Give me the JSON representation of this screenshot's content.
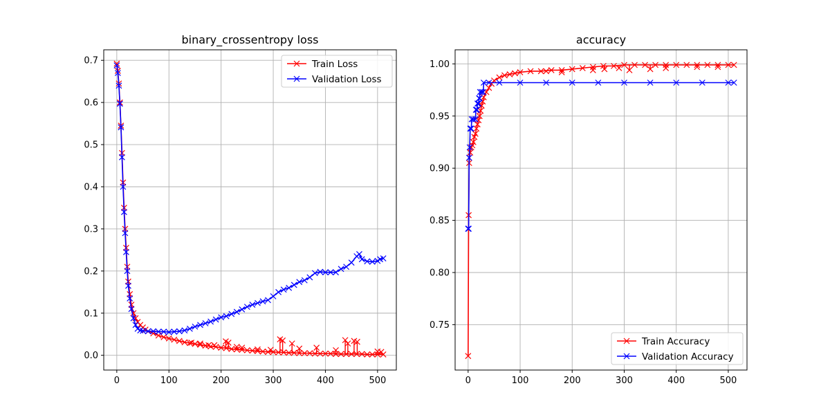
{
  "chart_data": [
    {
      "type": "line",
      "title": "binary_crossentropy loss",
      "xlabel": "",
      "ylabel": "",
      "xlim": [
        -25,
        536
      ],
      "ylim": [
        -0.035,
        0.725
      ],
      "xticks": [
        0,
        100,
        200,
        300,
        400,
        500
      ],
      "yticks": [
        0.0,
        0.1,
        0.2,
        0.3,
        0.4,
        0.5,
        0.6,
        0.7
      ],
      "grid": true,
      "legend_position": "upper right",
      "marker": "x",
      "series": [
        {
          "name": "Train Loss",
          "color": "#ff0000",
          "points": [
            [
              0,
              0.692
            ],
            [
              2,
              0.675
            ],
            [
              4,
              0.645
            ],
            [
              6,
              0.6
            ],
            [
              8,
              0.545
            ],
            [
              10,
              0.48
            ],
            [
              12,
              0.41
            ],
            [
              14,
              0.35
            ],
            [
              16,
              0.3
            ],
            [
              18,
              0.255
            ],
            [
              20,
              0.21
            ],
            [
              22,
              0.175
            ],
            [
              25,
              0.145
            ],
            [
              28,
              0.12
            ],
            [
              32,
              0.1
            ],
            [
              36,
              0.088
            ],
            [
              40,
              0.079
            ],
            [
              45,
              0.072
            ],
            [
              50,
              0.066
            ],
            [
              55,
              0.061
            ],
            [
              60,
              0.057
            ],
            [
              70,
              0.052
            ],
            [
              80,
              0.047
            ],
            [
              90,
              0.043
            ],
            [
              100,
              0.04
            ],
            [
              110,
              0.037
            ],
            [
              120,
              0.034
            ],
            [
              130,
              0.031
            ],
            [
              140,
              0.029
            ],
            [
              150,
              0.027
            ],
            [
              160,
              0.025
            ],
            [
              170,
              0.023
            ],
            [
              180,
              0.021
            ],
            [
              190,
              0.02
            ],
            [
              200,
              0.018
            ],
            [
              210,
              0.017
            ],
            [
              220,
              0.015
            ],
            [
              230,
              0.014
            ],
            [
              240,
              0.013
            ],
            [
              250,
              0.012
            ],
            [
              260,
              0.011
            ],
            [
              270,
              0.01
            ],
            [
              280,
              0.009
            ],
            [
              290,
              0.008
            ],
            [
              300,
              0.008
            ],
            [
              310,
              0.007
            ],
            [
              320,
              0.007
            ],
            [
              330,
              0.006
            ],
            [
              340,
              0.006
            ],
            [
              350,
              0.005
            ],
            [
              360,
              0.005
            ],
            [
              370,
              0.005
            ],
            [
              380,
              0.004
            ],
            [
              390,
              0.004
            ],
            [
              400,
              0.004
            ],
            [
              410,
              0.004
            ],
            [
              420,
              0.003
            ],
            [
              430,
              0.003
            ],
            [
              440,
              0.003
            ],
            [
              450,
              0.003
            ],
            [
              460,
              0.003
            ],
            [
              470,
              0.003
            ],
            [
              480,
              0.002
            ],
            [
              490,
              0.002
            ],
            [
              500,
              0.002
            ],
            [
              511,
              0.002
            ]
          ],
          "spikes": [
            [
              143,
              0.03
            ],
            [
              160,
              0.028
            ],
            [
              176,
              0.024
            ],
            [
              187,
              0.024
            ],
            [
              209,
              0.033
            ],
            [
              214,
              0.03
            ],
            [
              230,
              0.02
            ],
            [
              240,
              0.018
            ],
            [
              270,
              0.014
            ],
            [
              295,
              0.013
            ],
            [
              313,
              0.038
            ],
            [
              318,
              0.035
            ],
            [
              336,
              0.028
            ],
            [
              350,
              0.016
            ],
            [
              383,
              0.018
            ],
            [
              420,
              0.012
            ],
            [
              438,
              0.036
            ],
            [
              443,
              0.028
            ],
            [
              455,
              0.034
            ],
            [
              461,
              0.032
            ],
            [
              500,
              0.009
            ],
            [
              507,
              0.008
            ]
          ]
        },
        {
          "name": "Validation Loss",
          "color": "#0000ff",
          "points": [
            [
              0,
              0.688
            ],
            [
              2,
              0.67
            ],
            [
              4,
              0.64
            ],
            [
              6,
              0.597
            ],
            [
              8,
              0.541
            ],
            [
              10,
              0.47
            ],
            [
              12,
              0.4
            ],
            [
              14,
              0.34
            ],
            [
              16,
              0.29
            ],
            [
              18,
              0.245
            ],
            [
              20,
              0.2
            ],
            [
              22,
              0.165
            ],
            [
              25,
              0.135
            ],
            [
              28,
              0.11
            ],
            [
              32,
              0.088
            ],
            [
              36,
              0.072
            ],
            [
              40,
              0.063
            ],
            [
              45,
              0.059
            ],
            [
              50,
              0.058
            ],
            [
              60,
              0.057
            ],
            [
              70,
              0.057
            ],
            [
              80,
              0.056
            ],
            [
              90,
              0.056
            ],
            [
              100,
              0.055
            ],
            [
              110,
              0.056
            ],
            [
              120,
              0.057
            ],
            [
              130,
              0.059
            ],
            [
              140,
              0.063
            ],
            [
              150,
              0.068
            ],
            [
              160,
              0.072
            ],
            [
              170,
              0.076
            ],
            [
              180,
              0.08
            ],
            [
              190,
              0.085
            ],
            [
              200,
              0.09
            ],
            [
              210,
              0.093
            ],
            [
              220,
              0.098
            ],
            [
              230,
              0.103
            ],
            [
              240,
              0.109
            ],
            [
              250,
              0.115
            ],
            [
              260,
              0.12
            ],
            [
              270,
              0.124
            ],
            [
              280,
              0.128
            ],
            [
              290,
              0.131
            ],
            [
              300,
              0.14
            ],
            [
              310,
              0.15
            ],
            [
              320,
              0.156
            ],
            [
              330,
              0.16
            ],
            [
              340,
              0.167
            ],
            [
              350,
              0.174
            ],
            [
              360,
              0.178
            ],
            [
              370,
              0.185
            ],
            [
              380,
              0.195
            ],
            [
              390,
              0.198
            ],
            [
              400,
              0.197
            ],
            [
              410,
              0.197
            ],
            [
              420,
              0.197
            ],
            [
              430,
              0.205
            ],
            [
              440,
              0.21
            ],
            [
              450,
              0.22
            ],
            [
              460,
              0.235
            ],
            [
              465,
              0.24
            ],
            [
              470,
              0.228
            ],
            [
              480,
              0.223
            ],
            [
              490,
              0.222
            ],
            [
              500,
              0.224
            ],
            [
              505,
              0.228
            ],
            [
              511,
              0.23
            ]
          ]
        }
      ]
    },
    {
      "type": "line",
      "title": "accuracy",
      "xlabel": "",
      "ylabel": "",
      "xlim": [
        -25,
        536
      ],
      "ylim": [
        0.7065,
        1.0135
      ],
      "xticks": [
        0,
        100,
        200,
        300,
        400,
        500
      ],
      "yticks": [
        0.75,
        0.8,
        0.85,
        0.9,
        0.95,
        1.0
      ],
      "ytick_labels": [
        "0.75",
        "0.80",
        "0.85",
        "0.90",
        "0.95",
        "1.00"
      ],
      "grid": true,
      "legend_position": "lower right",
      "marker": "x",
      "series": [
        {
          "name": "Train Accuracy",
          "color": "#ff0000",
          "points": [
            [
              0,
              0.72
            ],
            [
              1,
              0.855
            ],
            [
              2,
              0.905
            ],
            [
              4,
              0.915
            ],
            [
              6,
              0.92
            ],
            [
              8,
              0.922
            ],
            [
              10,
              0.925
            ],
            [
              12,
              0.93
            ],
            [
              14,
              0.933
            ],
            [
              16,
              0.938
            ],
            [
              18,
              0.942
            ],
            [
              20,
              0.946
            ],
            [
              22,
              0.95
            ],
            [
              24,
              0.955
            ],
            [
              26,
              0.96
            ],
            [
              28,
              0.964
            ],
            [
              30,
              0.968
            ],
            [
              35,
              0.973
            ],
            [
              40,
              0.977
            ],
            [
              45,
              0.981
            ],
            [
              50,
              0.984
            ],
            [
              60,
              0.987
            ],
            [
              70,
              0.989
            ],
            [
              80,
              0.99
            ],
            [
              90,
              0.991
            ],
            [
              100,
              0.992
            ],
            [
              120,
              0.993
            ],
            [
              140,
              0.993
            ],
            [
              160,
              0.994
            ],
            [
              180,
              0.994
            ],
            [
              200,
              0.995
            ],
            [
              220,
              0.996
            ],
            [
              240,
              0.997
            ],
            [
              260,
              0.998
            ],
            [
              280,
              0.998
            ],
            [
              300,
              0.999
            ],
            [
              320,
              0.999
            ],
            [
              340,
              0.999
            ],
            [
              360,
              0.999
            ],
            [
              380,
              0.999
            ],
            [
              400,
              0.999
            ],
            [
              420,
              0.999
            ],
            [
              440,
              0.999
            ],
            [
              460,
              0.999
            ],
            [
              480,
              0.999
            ],
            [
              500,
              0.999
            ],
            [
              511,
              0.999
            ]
          ],
          "dips": [
            [
              150,
              0.993
            ],
            [
              180,
              0.992
            ],
            [
              240,
              0.994
            ],
            [
              262,
              0.995
            ],
            [
              290,
              0.996
            ],
            [
              310,
              0.994
            ],
            [
              350,
              0.995
            ],
            [
              380,
              0.996
            ],
            [
              440,
              0.997
            ],
            [
              480,
              0.997
            ]
          ]
        },
        {
          "name": "Validation Accuracy",
          "color": "#0000ff",
          "points": [
            [
              0,
              0.842
            ],
            [
              1,
              0.842
            ],
            [
              2,
              0.91
            ],
            [
              3,
              0.92
            ],
            [
              4,
              0.938
            ],
            [
              6,
              0.938
            ],
            [
              7,
              0.947
            ],
            [
              10,
              0.947
            ],
            [
              14,
              0.947
            ],
            [
              15,
              0.956
            ],
            [
              17,
              0.956
            ],
            [
              18,
              0.962
            ],
            [
              20,
              0.962
            ],
            [
              21,
              0.967
            ],
            [
              22,
              0.967
            ],
            [
              23,
              0.973
            ],
            [
              26,
              0.973
            ],
            [
              29,
              0.973
            ],
            [
              30,
              0.982
            ],
            [
              40,
              0.982
            ],
            [
              60,
              0.982
            ],
            [
              100,
              0.982
            ],
            [
              150,
              0.982
            ],
            [
              200,
              0.982
            ],
            [
              250,
              0.982
            ],
            [
              300,
              0.982
            ],
            [
              350,
              0.982
            ],
            [
              400,
              0.982
            ],
            [
              450,
              0.982
            ],
            [
              500,
              0.982
            ],
            [
              511,
              0.982
            ]
          ]
        }
      ]
    }
  ]
}
